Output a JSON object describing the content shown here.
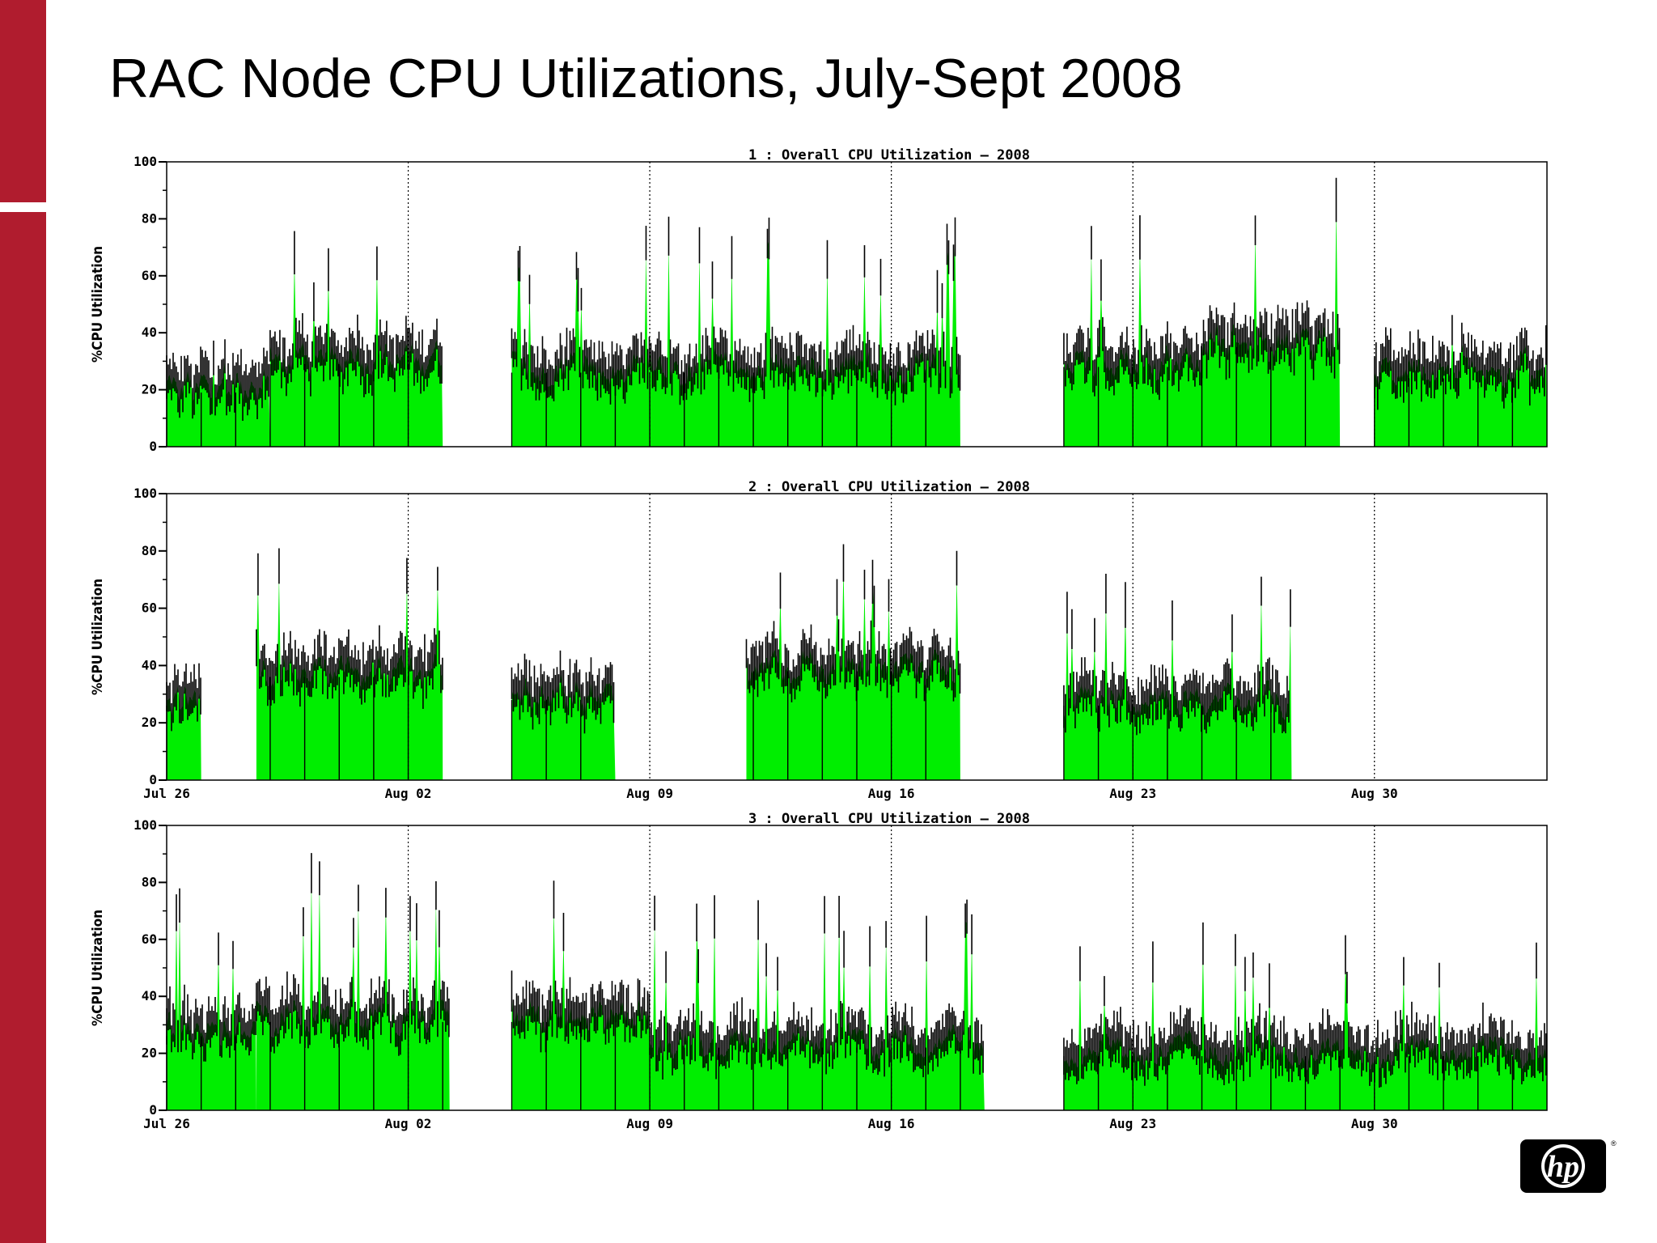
{
  "slide": {
    "title": "RAC Node CPU Utilizations, July-Sept 2008"
  },
  "colors": {
    "accent_bar": "#b01c2e",
    "fill": "#00ee00",
    "spike": "#000000"
  },
  "logo": {
    "icon": "hp-logo",
    "text": "hp"
  },
  "chart_data": [
    {
      "type": "area",
      "title": "1 : Overall CPU Utilization – 2008",
      "ylabel": "%CPU Utilization",
      "ylim": [
        0,
        100
      ],
      "yticks": [
        "0",
        "20",
        "40",
        "60",
        "80",
        "100"
      ],
      "xlim": [
        "2008-07-26",
        "2008-09-04"
      ],
      "xticks": [],
      "grid": "vertical dotted",
      "segments": [
        {
          "start": "2008-07-26",
          "end": "2008-07-29",
          "base": 21,
          "peak": 34
        },
        {
          "start": "2008-07-29",
          "end": "2008-08-03",
          "base": 31,
          "peak": 66
        },
        {
          "start": "2008-08-05",
          "end": "2008-08-18",
          "base": 28,
          "peak": 74
        },
        {
          "start": "2008-08-21",
          "end": "2008-08-25",
          "base": 30,
          "peak": 82
        },
        {
          "start": "2008-08-25",
          "end": "2008-08-29",
          "base": 37,
          "peak": 93
        },
        {
          "start": "2008-08-30",
          "end": "2008-09-04",
          "base": 26,
          "peak": 40
        }
      ]
    },
    {
      "type": "area",
      "title": "2 : Overall CPU Utilization – 2008",
      "ylabel": "%CPU Utilization",
      "ylim": [
        0,
        100
      ],
      "yticks": [
        "0",
        "20",
        "40",
        "60",
        "80",
        "100"
      ],
      "xlim": [
        "2008-07-26",
        "2008-09-04"
      ],
      "xticks": [
        "Jul 26",
        "Aug 02",
        "Aug 09",
        "Aug 16",
        "Aug 23",
        "Aug 30"
      ],
      "grid": "vertical dotted",
      "segments": [
        {
          "start": "2008-07-26",
          "end": "2008-07-27",
          "base": 28,
          "peak": 50
        },
        {
          "start": "2008-07-28.6",
          "end": "2008-08-03",
          "base": 38,
          "peak": 76
        },
        {
          "start": "2008-08-05",
          "end": "2008-08-08",
          "base": 30,
          "peak": 76
        },
        {
          "start": "2008-08-11.8",
          "end": "2008-08-18",
          "base": 40,
          "peak": 78
        },
        {
          "start": "2008-08-21",
          "end": "2008-08-27.6",
          "base": 28,
          "peak": 68
        }
      ]
    },
    {
      "type": "area",
      "title": "3 : Overall CPU Utilization – 2008",
      "ylabel": "%CPU Utilization",
      "ylim": [
        0,
        100
      ],
      "yticks": [
        "0",
        "20",
        "40",
        "60",
        "80",
        "100"
      ],
      "xlim": [
        "2008-07-26",
        "2008-09-04"
      ],
      "xticks": [
        "Jul 26",
        "Aug 02",
        "Aug 09",
        "Aug 16",
        "Aug 23",
        "Aug 30"
      ],
      "grid": "vertical dotted",
      "segments": [
        {
          "start": "2008-07-26",
          "end": "2008-07-28.6",
          "base": 28,
          "peak": 70
        },
        {
          "start": "2008-07-28.6",
          "end": "2008-08-03.2",
          "base": 33,
          "peak": 83
        },
        {
          "start": "2008-08-05",
          "end": "2008-08-09",
          "base": 33,
          "peak": 75
        },
        {
          "start": "2008-08-09",
          "end": "2008-08-18.7",
          "base": 24,
          "peak": 68
        },
        {
          "start": "2008-08-21",
          "end": "2008-09-04",
          "base": 21,
          "peak": 58
        }
      ]
    }
  ]
}
